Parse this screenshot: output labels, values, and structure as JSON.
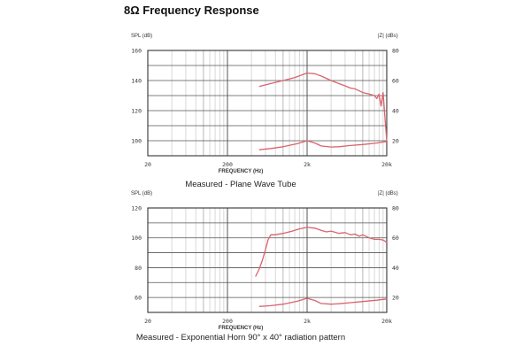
{
  "page": {
    "title": "8Ω Frequency Response"
  },
  "chart_data": [
    {
      "type": "line",
      "caption": "Measured - Plane Wave Tube",
      "xlabel": "FREQUENCY (Hz)",
      "ylabel_left": "SPL (dB)",
      "ylabel_right": "|Z| (dBs)",
      "x_scale": "log",
      "xlim": [
        20,
        20000
      ],
      "x_ticks": [
        20,
        200,
        2000,
        20000
      ],
      "x_tick_labels": [
        "20",
        "200",
        "2k",
        "20k"
      ],
      "ylim_left": [
        90,
        160
      ],
      "y_ticks_left": [
        100,
        120,
        140,
        160
      ],
      "ylim_right": [
        10,
        80
      ],
      "y_ticks_right": [
        20,
        40,
        60,
        80
      ],
      "grid": true,
      "line_color": "#d9646e",
      "series": [
        {
          "axis": "left",
          "x": [
            500,
            700,
            1000,
            1400,
            2000,
            2500,
            3000,
            4000,
            5000,
            6000,
            7000,
            8000,
            10000,
            12000,
            14000,
            15000,
            16000,
            17000,
            18000,
            19000,
            20000
          ],
          "y": [
            136,
            138,
            140,
            142,
            145,
            144.5,
            143,
            140,
            138,
            136.5,
            135,
            134.5,
            132,
            131,
            130,
            128,
            131,
            123,
            132,
            115,
            100
          ]
        },
        {
          "axis": "right",
          "x": [
            500,
            700,
            1000,
            1500,
            2000,
            2500,
            3000,
            4000,
            5000,
            7000,
            10000,
            15000,
            20000
          ],
          "y": [
            14,
            14.8,
            16,
            18,
            20,
            18.5,
            16.5,
            15.8,
            16,
            16.8,
            17.5,
            18.5,
            19.5
          ]
        }
      ]
    },
    {
      "type": "line",
      "caption": "Measured - Exponential Horn 90° x 40° radiation pattern",
      "xlabel": "FREQUENCY (Hz)",
      "ylabel_left": "SPL (dB)",
      "ylabel_right": "|Z| (dBs)",
      "x_scale": "log",
      "xlim": [
        20,
        20000
      ],
      "x_ticks": [
        20,
        200,
        2000,
        20000
      ],
      "x_tick_labels": [
        "20",
        "200",
        "2k",
        "20k"
      ],
      "ylim_left": [
        50,
        120
      ],
      "y_ticks_left": [
        60,
        80,
        100,
        120
      ],
      "ylim_right": [
        10,
        80
      ],
      "y_ticks_right": [
        20,
        40,
        60,
        80
      ],
      "grid": true,
      "line_color": "#d9646e",
      "series": [
        {
          "axis": "left",
          "x": [
            450,
            500,
            550,
            600,
            650,
            700,
            800,
            1000,
            1300,
            1600,
            2000,
            2500,
            3000,
            3500,
            4000,
            5000,
            6000,
            7000,
            8000,
            9000,
            10000,
            12000,
            14000,
            16000,
            18000,
            20000
          ],
          "y": [
            74,
            79,
            85,
            92,
            99,
            102,
            102,
            103,
            104.5,
            106,
            107,
            106.5,
            105,
            104,
            104.5,
            103,
            103.5,
            102,
            102.5,
            101,
            102,
            100,
            99,
            99,
            98.5,
            97
          ]
        },
        {
          "axis": "right",
          "x": [
            500,
            700,
            1000,
            1500,
            2000,
            2500,
            3000,
            4000,
            5000,
            7000,
            10000,
            15000,
            20000
          ],
          "y": [
            14,
            14.5,
            15.5,
            17.5,
            19.5,
            18,
            16,
            15.5,
            15.8,
            16.5,
            17.3,
            18.2,
            19
          ]
        }
      ]
    }
  ]
}
